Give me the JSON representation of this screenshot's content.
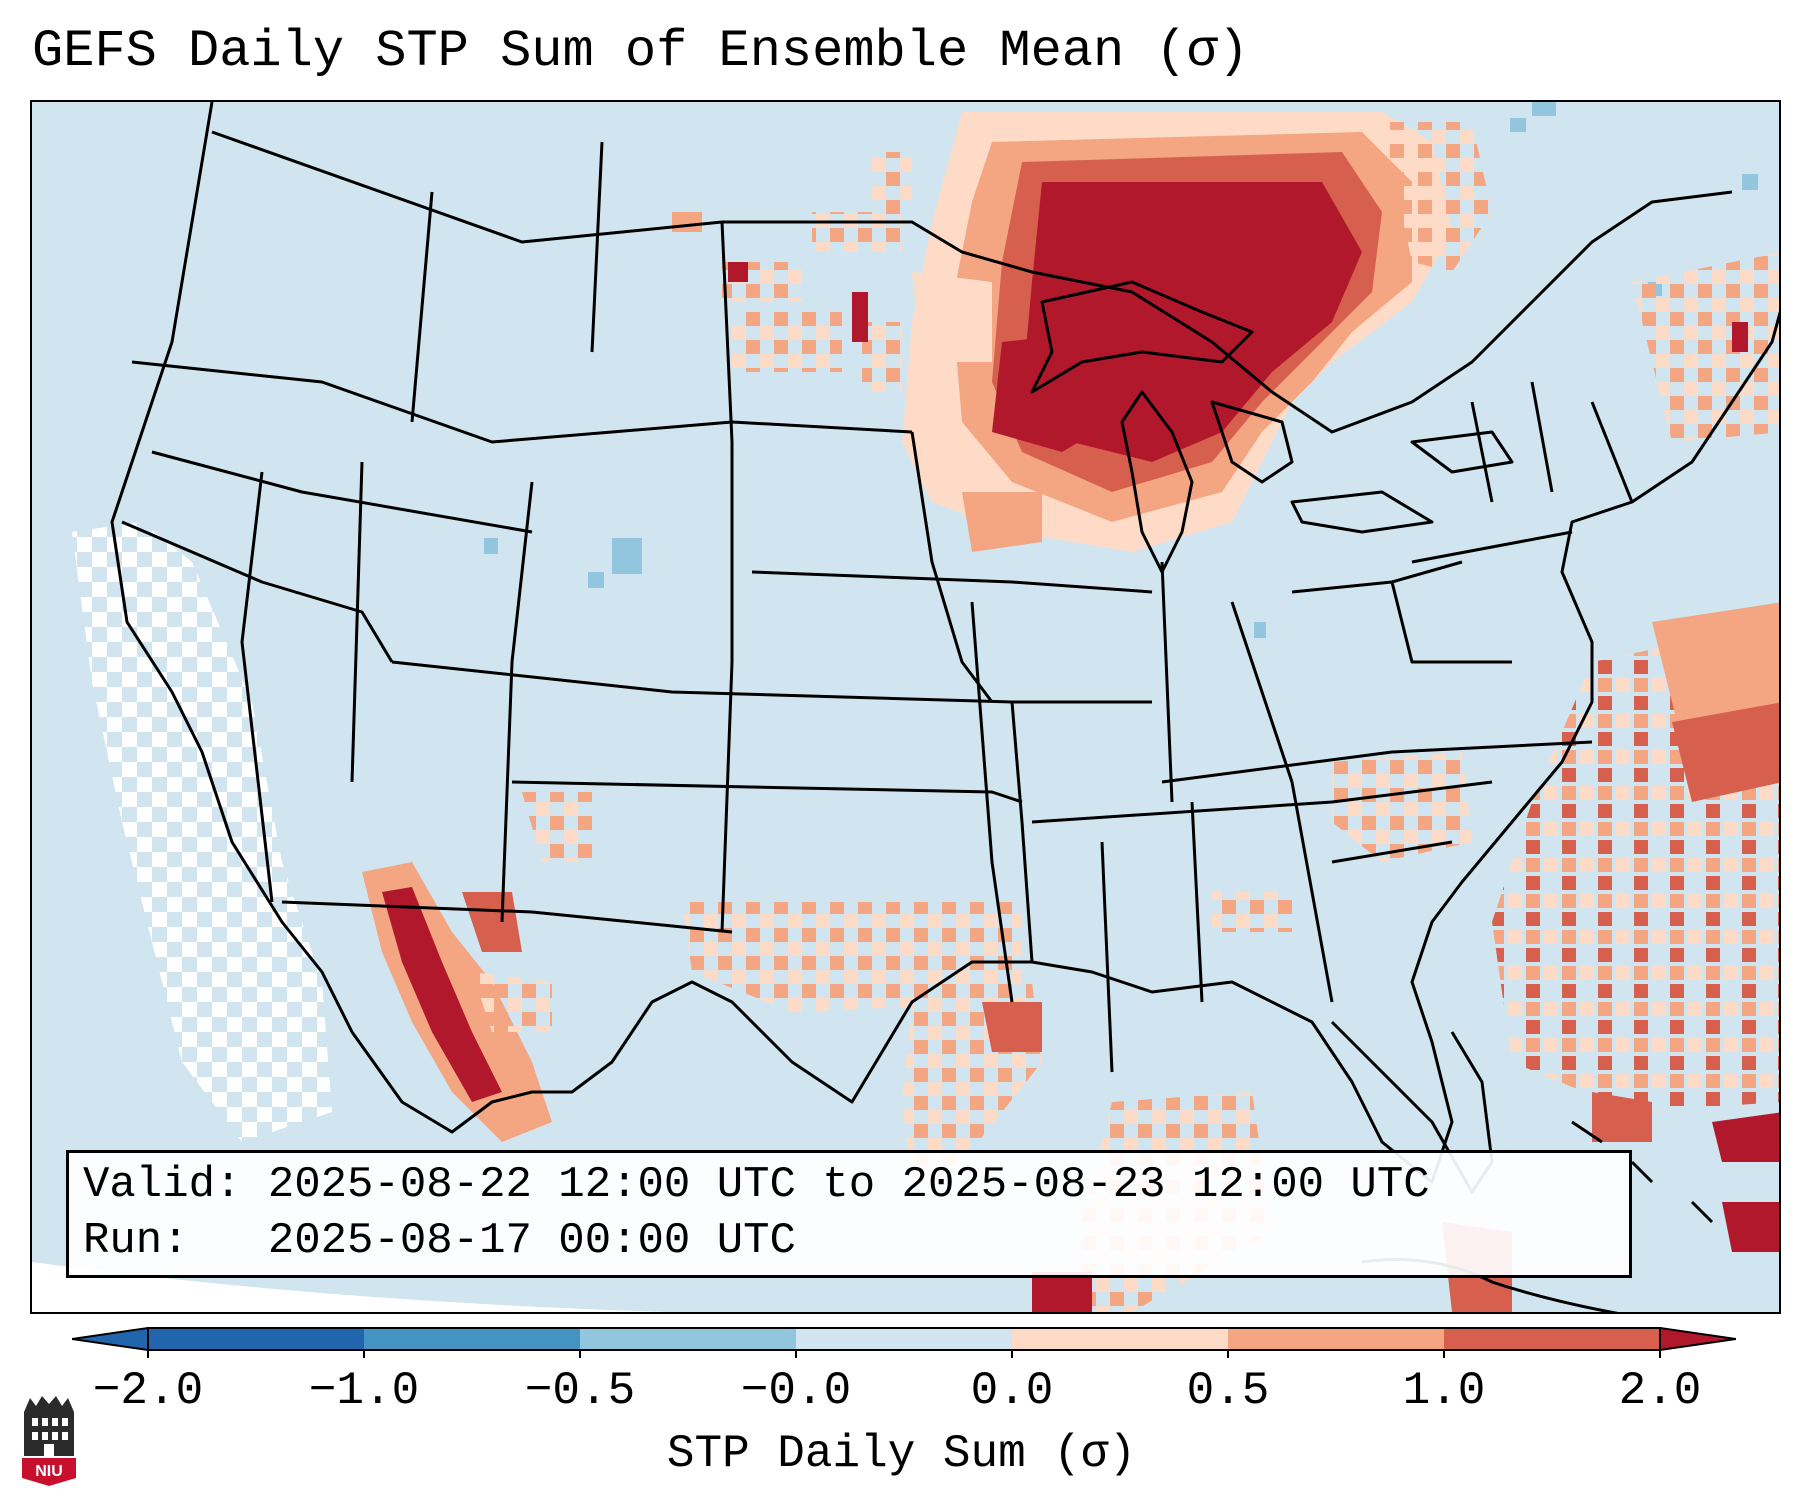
{
  "title": "GEFS Daily STP Sum of Ensemble Mean (σ)",
  "infobox": {
    "valid_label": "Valid:",
    "valid_value": "2025-08-22 12:00 UTC to 2025-08-23 12:00 UTC",
    "run_label": "Run:",
    "run_value": "2025-08-17 00:00 UTC"
  },
  "colorbar": {
    "label": "STP Daily Sum (σ)",
    "ticks": [
      "−2.0",
      "−1.0",
      "−0.5",
      "−0.0",
      "0.0",
      "0.5",
      "1.0",
      "2.0"
    ],
    "bins": [
      {
        "range": "< -2.0",
        "color": "#2166ac"
      },
      {
        "range": "-2.0 to -1.0",
        "color": "#4393c3"
      },
      {
        "range": "-1.0 to -0.5",
        "color": "#92c5de"
      },
      {
        "range": "-0.5 to -0.0",
        "color": "#d1e5f0"
      },
      {
        "range": "-0.0 to 0.0",
        "color": "#f7f7f7"
      },
      {
        "range": "0.0 to 0.5",
        "color": "#fddbc7"
      },
      {
        "range": "0.5 to 1.0",
        "color": "#f4a582"
      },
      {
        "range": "1.0 to 2.0",
        "color": "#d6604d"
      },
      {
        "range": "> 2.0",
        "color": "#b2182b"
      }
    ]
  },
  "map": {
    "domain": "CONUS",
    "background_color": "#d1e5f0",
    "features": [
      {
        "name": "Upper Midwest / Great Lakes maximum",
        "level": "> 2.0"
      },
      {
        "name": "Mexican Plateau / Sierra Madre",
        "level": "1.0 to 2.0"
      },
      {
        "name": "Western Atlantic",
        "level": "0.5 to 2.0"
      },
      {
        "name": "Eastern Pacific offshore",
        "level": "-0.0 to 0.0"
      }
    ]
  },
  "logo": {
    "text": "NIU"
  }
}
